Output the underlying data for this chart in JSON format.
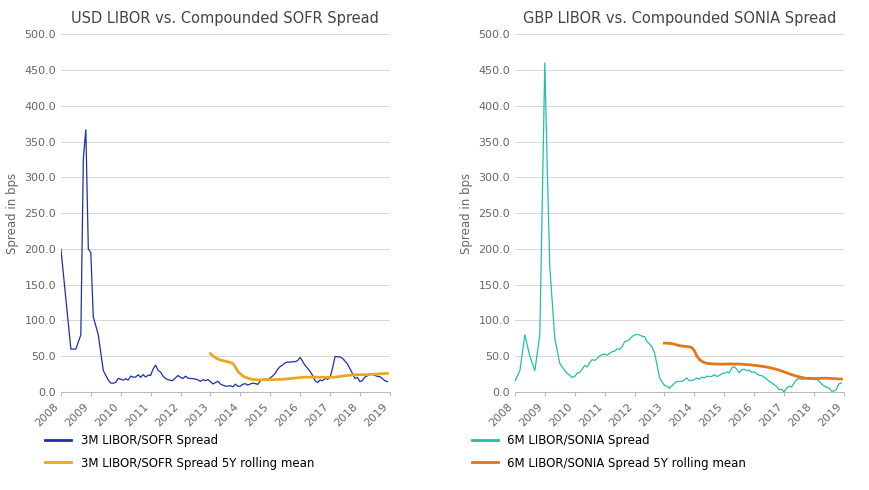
{
  "title_left": "USD LIBOR vs. Compounded SOFR Spread",
  "title_right": "GBP LIBOR vs. Compounded SONIA Spread",
  "ylabel": "Spread in bps",
  "ylim": [
    0,
    500
  ],
  "yticks": [
    0,
    50,
    100,
    150,
    200,
    250,
    300,
    350,
    400,
    450,
    500
  ],
  "xtick_labels": [
    "2008",
    "2009",
    "2010",
    "2011",
    "2012",
    "2013",
    "2014",
    "2015",
    "2016",
    "2017",
    "2018",
    "2019"
  ],
  "color_sofr": "#1f2faa",
  "color_sofr_mean": "#e8a820",
  "color_sonia": "#20c0a8",
  "color_sonia_mean": "#e07818",
  "legend_sofr": "3M LIBOR/SOFR Spread",
  "legend_sofr_mean": "3M LIBOR/SOFR Spread 5Y rolling mean",
  "legend_sonia": "6M LIBOR/SONIA Spread",
  "legend_sonia_mean": "6M LIBOR/SONIA Spread 5Y rolling mean",
  "background_color": "#ffffff",
  "grid_color": "#d0d0d0",
  "title_fontsize": 10.5,
  "label_fontsize": 8.5,
  "tick_fontsize": 8,
  "legend_fontsize": 8.5
}
